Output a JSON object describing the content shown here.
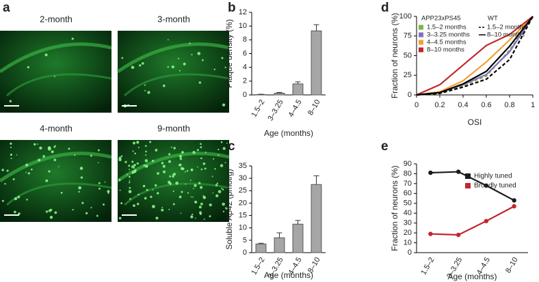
{
  "images": {
    "panel_label": "a",
    "labels": [
      "2-month",
      "3-month",
      "4-month",
      "9-month"
    ]
  },
  "chart_data": [
    {
      "type": "bar",
      "panel_label": "b",
      "y_label": "Plaque density (%)",
      "x_label": "Age (months)",
      "categories": [
        "1.5–2",
        "3–3.25",
        "4–4.5",
        "8–10"
      ],
      "values": [
        0.05,
        0.25,
        1.6,
        9.3
      ],
      "errors": [
        0.05,
        0.1,
        0.3,
        0.9
      ],
      "color": "#a6a6a6",
      "ylim": [
        0,
        12
      ],
      "yticks": [
        0,
        2,
        4,
        6,
        8,
        10,
        12
      ]
    },
    {
      "type": "bar",
      "panel_label": "c",
      "y_label": "Soluble Aβ42 (pmol/g)",
      "x_label": "Age (months)",
      "categories": [
        "1.5–2",
        "3–3.25",
        "4–4.5",
        "8–10"
      ],
      "values": [
        3.5,
        6,
        11.5,
        27.5
      ],
      "errors": [
        0.3,
        2,
        1.5,
        3.5
      ],
      "color": "#a6a6a6",
      "ylim": [
        0,
        35
      ],
      "yticks": [
        0,
        5,
        10,
        15,
        20,
        25,
        30,
        35
      ]
    },
    {
      "type": "line",
      "panel_label": "d",
      "y_label": "Fraction of neurons (%)",
      "x_label": "OSI",
      "legend_titles": [
        "APP23xPS45",
        "WT"
      ],
      "x": [
        0,
        0.2,
        0.4,
        0.6,
        0.8,
        1
      ],
      "xlim": [
        0,
        1
      ],
      "xticks": [
        0,
        0.2,
        0.4,
        0.6,
        0.8,
        1
      ],
      "ylim": [
        0,
        100
      ],
      "yticks": [
        0,
        25,
        50,
        75,
        100
      ],
      "series": [
        {
          "name": "1.5–2 months",
          "color": "#7ab648",
          "group": 0,
          "dash": true,
          "values": [
            0,
            2,
            12,
            24,
            57,
            100
          ]
        },
        {
          "name": "3–3.25 months",
          "color": "#8a6cc0",
          "group": 0,
          "dash": false,
          "values": [
            0,
            3,
            13,
            26,
            55,
            100
          ]
        },
        {
          "name": "4–4.5 months",
          "color": "#f0a030",
          "group": 0,
          "dash": false,
          "values": [
            0,
            4,
            18,
            42,
            70,
            100
          ]
        },
        {
          "name": "8–10 months",
          "color": "#c0282d",
          "group": 0,
          "dash": false,
          "values": [
            0,
            13,
            38,
            63,
            77,
            100
          ]
        },
        {
          "name": "1.5–2 months",
          "color": "#000000",
          "group": 1,
          "dash": true,
          "values": [
            0,
            2,
            10,
            20,
            45,
            100
          ]
        },
        {
          "name": "8–10 months",
          "color": "#000000",
          "group": 1,
          "dash": false,
          "values": [
            0,
            3,
            14,
            30,
            62,
            100
          ]
        }
      ]
    },
    {
      "type": "line",
      "panel_label": "e",
      "y_label": "Fraction of neurons (%)",
      "x_label": "Age (months)",
      "categories": [
        "1.5–2",
        "3–3.25",
        "4–4.5",
        "8–10"
      ],
      "ylim": [
        0,
        90
      ],
      "yticks": [
        0,
        10,
        20,
        30,
        40,
        50,
        60,
        70,
        80,
        90
      ],
      "series": [
        {
          "name": "Highly tuned",
          "color": "#1a1a1a",
          "values": [
            81,
            82,
            68,
            53
          ]
        },
        {
          "name": "Broadly tuned",
          "color": "#c0282d",
          "values": [
            19,
            18,
            32,
            47
          ]
        }
      ]
    }
  ]
}
